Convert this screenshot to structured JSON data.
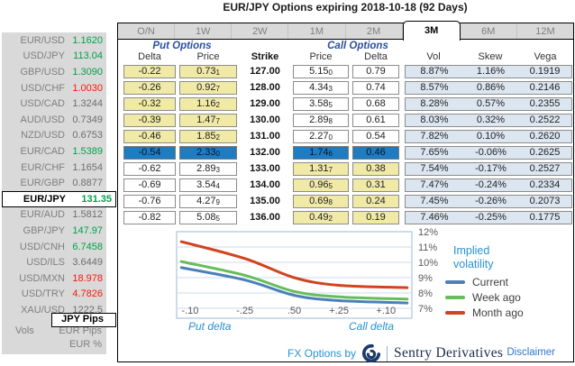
{
  "title": "EUR/JPY Options expiring 2018-10-18 (92 Days)",
  "colors": {
    "up_green": "#00A14B",
    "down_red": "#F51A0A",
    "neutral_gray": "#6E6E6E",
    "put_call_yellow": "#F0EAA6",
    "atm_blue": "#1E7CC2",
    "vol_band_blue": "#DCE6F1",
    "accent_azure": "#2792D2",
    "sidebar_gray": "#D9D9D9"
  },
  "sidebar": {
    "pairs": [
      {
        "label": "EUR/USD",
        "value": "1.1620",
        "trend": "up"
      },
      {
        "label": "USD/JPY",
        "value": "113.04",
        "trend": "up"
      },
      {
        "label": "GBP/USD",
        "value": "1.3090",
        "trend": "up"
      },
      {
        "label": "USD/CHF",
        "value": "1.0030",
        "trend": "down"
      },
      {
        "label": "USD/CAD",
        "value": "1.3244",
        "trend": "flat"
      },
      {
        "label": "AUD/USD",
        "value": "0.7349",
        "trend": "flat"
      },
      {
        "label": "NZD/USD",
        "value": "0.6753",
        "trend": "flat"
      },
      {
        "label": "EUR/CAD",
        "value": "1.5389",
        "trend": "up"
      },
      {
        "label": "EUR/CHF",
        "value": "1.1654",
        "trend": "flat"
      },
      {
        "label": "EUR/GBP",
        "value": "0.8877",
        "trend": "flat"
      },
      {
        "label": "EUR/JPY",
        "value": "131.35",
        "trend": "up",
        "selected": true
      },
      {
        "label": "EUR/AUD",
        "value": "1.5812",
        "trend": "flat"
      },
      {
        "label": "GBP/JPY",
        "value": "147.97",
        "trend": "up"
      },
      {
        "label": "USD/CNH",
        "value": "6.7458",
        "trend": "up"
      },
      {
        "label": "USD/ILS",
        "value": "3.6449",
        "trend": "flat"
      },
      {
        "label": "USD/MXN",
        "value": "18.978",
        "trend": "down"
      },
      {
        "label": "USD/TRY",
        "value": "4.7826",
        "trend": "down"
      },
      {
        "label": "XAU/USD",
        "value": "1222.5",
        "trend": "flat"
      }
    ],
    "selected_mode": "JPY Pips",
    "vols_label": "Vols",
    "other_modes": [
      "EUR Pips",
      "EUR %"
    ]
  },
  "tabs": {
    "items": [
      "O/N",
      "1W",
      "2W",
      "1M",
      "2M",
      "3M",
      "6M",
      "12M"
    ],
    "active": "3M"
  },
  "options_table": {
    "put_header": "Put Options",
    "call_header": "Call Options",
    "columns": [
      "Delta",
      "Price",
      "Strike",
      "Price",
      "Delta",
      "Vol",
      "Skew",
      "Vega"
    ],
    "rows": [
      {
        "put_delta": "-0.22",
        "put_price": "0.73",
        "put_price_sub": "1",
        "strike": "127.00",
        "call_price": "5.15",
        "call_price_sub": "0",
        "call_delta": "0.79",
        "vol": "8.87%",
        "skew": "1.16%",
        "vega": "0.1919",
        "atm": false
      },
      {
        "put_delta": "-0.26",
        "put_price": "0.92",
        "put_price_sub": "7",
        "strike": "128.00",
        "call_price": "4.34",
        "call_price_sub": "3",
        "call_delta": "0.74",
        "vol": "8.57%",
        "skew": "0.86%",
        "vega": "0.2146",
        "atm": false
      },
      {
        "put_delta": "-0.32",
        "put_price": "1.16",
        "put_price_sub": "2",
        "strike": "129.00",
        "call_price": "3.58",
        "call_price_sub": "5",
        "call_delta": "0.68",
        "vol": "8.28%",
        "skew": "0.57%",
        "vega": "0.2355",
        "atm": false
      },
      {
        "put_delta": "-0.39",
        "put_price": "1.47",
        "put_price_sub": "7",
        "strike": "130.00",
        "call_price": "2.89",
        "call_price_sub": "8",
        "call_delta": "0.61",
        "vol": "8.03%",
        "skew": "0.32%",
        "vega": "0.2522",
        "atm": false
      },
      {
        "put_delta": "-0.46",
        "put_price": "1.85",
        "put_price_sub": "2",
        "strike": "131.00",
        "call_price": "2.27",
        "call_price_sub": "0",
        "call_delta": "0.54",
        "vol": "7.82%",
        "skew": "0.10%",
        "vega": "0.2620",
        "atm": false
      },
      {
        "put_delta": "-0.54",
        "put_price": "2.33",
        "put_price_sub": "0",
        "strike": "132.00",
        "call_price": "1.74",
        "call_price_sub": "6",
        "call_delta": "0.46",
        "vol": "7.65%",
        "skew": "-0.06%",
        "vega": "0.2625",
        "atm": true
      },
      {
        "put_delta": "-0.62",
        "put_price": "2.89",
        "put_price_sub": "3",
        "strike": "133.00",
        "call_price": "1.31",
        "call_price_sub": "7",
        "call_delta": "0.38",
        "vol": "7.54%",
        "skew": "-0.17%",
        "vega": "0.2527",
        "atm": false
      },
      {
        "put_delta": "-0.69",
        "put_price": "3.54",
        "put_price_sub": "4",
        "strike": "134.00",
        "call_price": "0.96",
        "call_price_sub": "5",
        "call_delta": "0.31",
        "vol": "7.47%",
        "skew": "-0.24%",
        "vega": "0.2334",
        "atm": false
      },
      {
        "put_delta": "-0.76",
        "put_price": "4.27",
        "put_price_sub": "9",
        "strike": "135.00",
        "call_price": "0.69",
        "call_price_sub": "8",
        "call_delta": "0.24",
        "vol": "7.45%",
        "skew": "-0.26%",
        "vega": "0.2073",
        "atm": false
      },
      {
        "put_delta": "-0.82",
        "put_price": "5.08",
        "put_price_sub": "5",
        "strike": "136.00",
        "call_price": "0.49",
        "call_price_sub": "2",
        "call_delta": "0.19",
        "vol": "7.46%",
        "skew": "-0.25%",
        "vega": "0.1775",
        "atm": false
      }
    ]
  },
  "chart_data": {
    "type": "line",
    "title": "Implied volatility",
    "title_lines": [
      "Implied",
      "volatility"
    ],
    "x_ticks": [
      "-.10",
      "-.25",
      ".50",
      "+.25",
      "+.10"
    ],
    "x_axis_left_label": "Put delta",
    "x_axis_right_label": "Call delta",
    "y_ticks": [
      "12%",
      "11%",
      "10%",
      "9%",
      "8%",
      "7%"
    ],
    "ylim": [
      7,
      12
    ],
    "y_unit": "%",
    "grid": true,
    "legend_position": "right",
    "series": [
      {
        "name": "Current",
        "color": "#4C80BA",
        "values": [
          9.65,
          8.85,
          7.85,
          7.5,
          7.35
        ]
      },
      {
        "name": "Week ago",
        "color": "#66BE5A",
        "values": [
          10.05,
          9.15,
          8.1,
          7.75,
          7.6
        ]
      },
      {
        "name": "Month ago",
        "color": "#D2431F",
        "values": [
          11.35,
          10.25,
          9.0,
          8.5,
          8.35
        ]
      }
    ]
  },
  "footer": {
    "fx_options_by": "FX Options by",
    "brand": "Sentry Derivatives",
    "logo_icon": "swirl-logo",
    "disclaimer": "Disclaimer"
  }
}
